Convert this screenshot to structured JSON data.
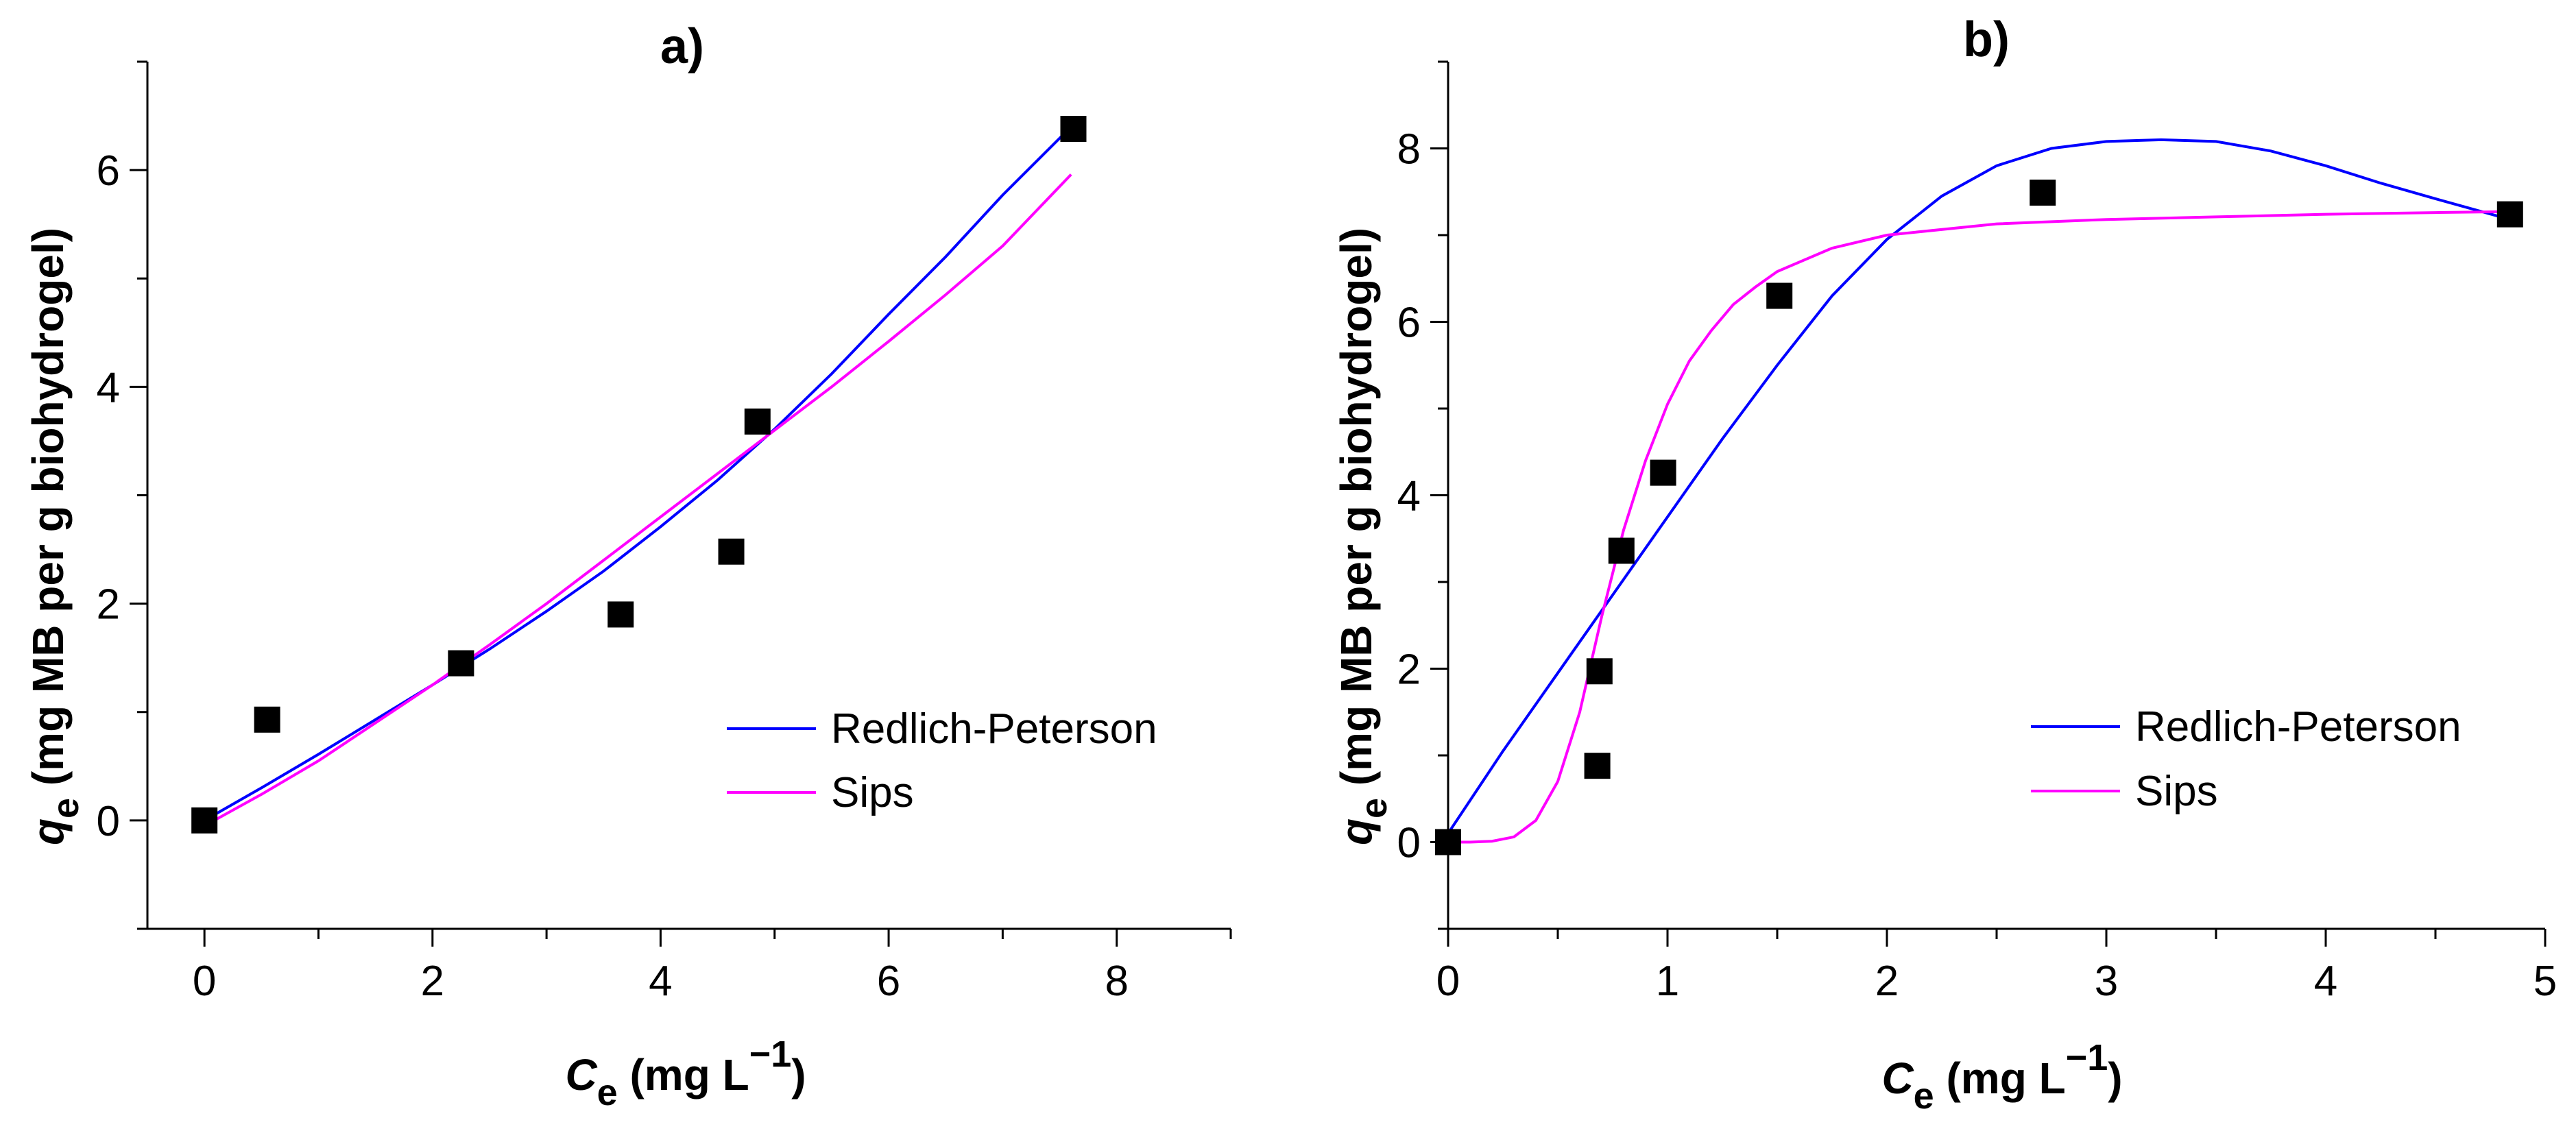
{
  "chart_data": [
    {
      "type": "scatter",
      "title": "a)",
      "xlabel": {
        "symbol": "C",
        "sub": "e",
        "units_prefix": " (mg L",
        "sup": "−1",
        "units_suffix": ")"
      },
      "ylabel": {
        "symbol": "q",
        "sub": "e",
        "units": " (mg MB per g biohydrogel)"
      },
      "xlim": [
        -0.5,
        9
      ],
      "ylim": [
        -1,
        7
      ],
      "xticks": [
        0,
        2,
        4,
        6,
        8
      ],
      "yticks": [
        0,
        2,
        4,
        6
      ],
      "xtick_labels": [
        "0",
        "2",
        "4",
        "6",
        "8"
      ],
      "ytick_labels": [
        "0",
        "2",
        "4",
        "6"
      ],
      "points": {
        "x": [
          0,
          0.55,
          2.25,
          3.65,
          4.62,
          4.85,
          7.62
        ],
        "y": [
          0,
          0.93,
          1.45,
          1.9,
          2.48,
          3.68,
          6.38
        ]
      },
      "series": [
        {
          "name": "Redlich-Peterson",
          "color": "#0000ff",
          "x": [
            0,
            0.5,
            1,
            1.5,
            2,
            2.5,
            3,
            3.5,
            4,
            4.5,
            5,
            5.5,
            6,
            6.5,
            7,
            7.6
          ],
          "y": [
            0,
            0.3,
            0.61,
            0.93,
            1.25,
            1.58,
            1.93,
            2.3,
            2.71,
            3.14,
            3.61,
            4.12,
            4.67,
            5.2,
            5.77,
            6.4
          ]
        },
        {
          "name": "Sips",
          "color": "#ff00ff",
          "x": [
            0,
            0.5,
            1,
            1.5,
            2,
            2.5,
            3,
            3.5,
            4,
            4.5,
            5,
            5.5,
            6,
            6.5,
            7,
            7.6
          ],
          "y": [
            -0.05,
            0.24,
            0.55,
            0.9,
            1.25,
            1.62,
            2.0,
            2.4,
            2.8,
            3.2,
            3.6,
            4.0,
            4.42,
            4.85,
            5.3,
            5.96
          ]
        }
      ],
      "legend_position": "lower-right"
    },
    {
      "type": "scatter",
      "title": "b)",
      "xlabel": {
        "symbol": "C",
        "sub": "e",
        "units_prefix": " (mg L",
        "sup": "−1",
        "units_suffix": ")"
      },
      "ylabel": {
        "symbol": "q",
        "sub": "e",
        "units": " (mg MB per g biohydrogel)"
      },
      "xlim": [
        0,
        5
      ],
      "ylim": [
        -1,
        9
      ],
      "xticks": [
        0,
        1,
        2,
        3,
        4,
        5
      ],
      "yticks": [
        0,
        2,
        4,
        6,
        8
      ],
      "xtick_labels": [
        "0",
        "1",
        "2",
        "3",
        "4",
        "5"
      ],
      "ytick_labels": [
        "0",
        "2",
        "4",
        "6",
        "8"
      ],
      "points": {
        "x": [
          0,
          0.68,
          0.69,
          0.79,
          0.98,
          1.51,
          2.71,
          4.84
        ],
        "y": [
          0,
          0.88,
          1.97,
          3.36,
          4.26,
          6.3,
          7.49,
          7.24
        ]
      },
      "series": [
        {
          "name": "Redlich-Peterson",
          "color": "#0000ff",
          "x": [
            0,
            0.25,
            0.5,
            0.75,
            1,
            1.25,
            1.5,
            1.75,
            2,
            2.25,
            2.5,
            2.75,
            3,
            3.25,
            3.5,
            3.75,
            4,
            4.25,
            4.5,
            4.84
          ],
          "y": [
            0.1,
            1.05,
            1.95,
            2.85,
            3.75,
            4.65,
            5.5,
            6.3,
            6.95,
            7.45,
            7.8,
            8.0,
            8.08,
            8.1,
            8.08,
            7.97,
            7.8,
            7.6,
            7.42,
            7.18
          ]
        },
        {
          "name": "Sips",
          "color": "#ff00ff",
          "x": [
            0,
            0.1,
            0.2,
            0.3,
            0.4,
            0.5,
            0.6,
            0.7,
            0.8,
            0.9,
            1,
            1.1,
            1.2,
            1.3,
            1.4,
            1.5,
            1.75,
            2,
            2.5,
            3,
            3.5,
            4,
            4.5,
            4.84
          ],
          "y": [
            0,
            0,
            0.01,
            0.06,
            0.25,
            0.7,
            1.5,
            2.6,
            3.6,
            4.4,
            5.05,
            5.55,
            5.9,
            6.2,
            6.4,
            6.58,
            6.85,
            7.0,
            7.13,
            7.18,
            7.21,
            7.24,
            7.26,
            7.27
          ]
        }
      ],
      "legend_position": "lower-right"
    }
  ]
}
